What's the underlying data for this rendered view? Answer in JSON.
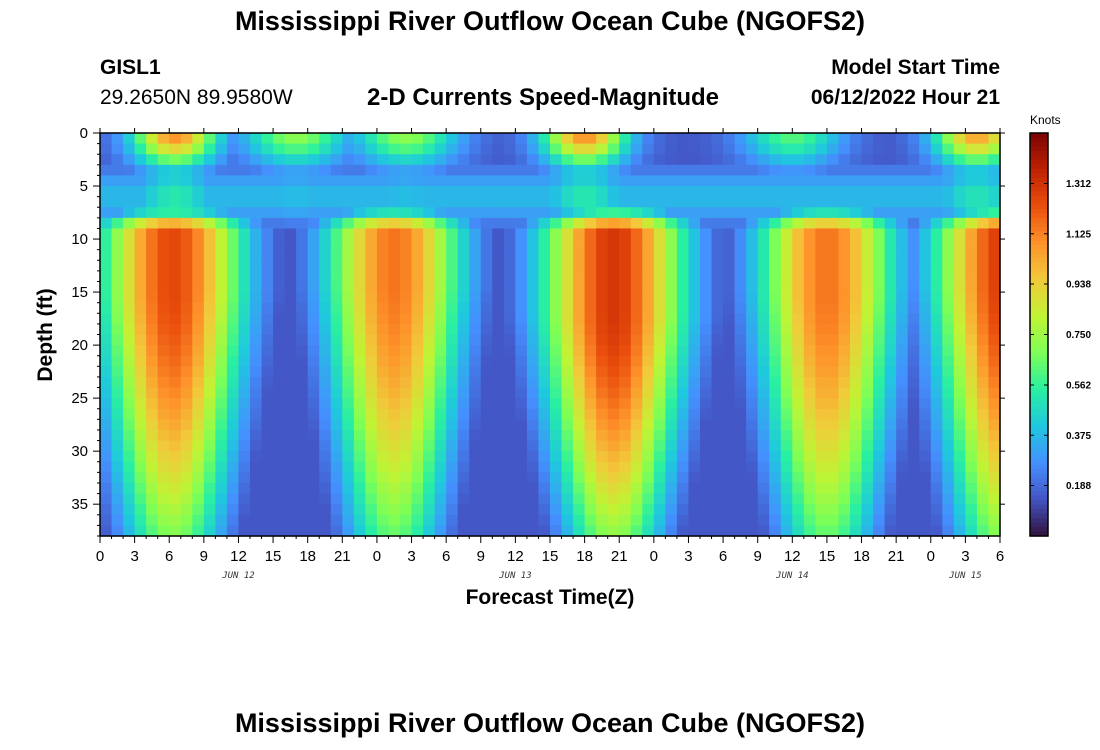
{
  "header": {
    "title": "Mississippi River Outflow Ocean Cube (NGOFS2)",
    "station_name": "GISL1",
    "station_coords": "29.2650N  89.9580W",
    "subtitle": "2-D Currents Speed-Magnitude",
    "model_label": "Model Start Time",
    "model_time": "06/12/2022 Hour 21"
  },
  "footer": {
    "title": "Mississippi River Outflow Ocean Cube (NGOFS2)"
  },
  "chart_data": {
    "type": "heatmap",
    "title": "2-D Currents Speed-Magnitude",
    "xlabel": "Forecast Time(Z)",
    "ylabel": "Depth (ft)",
    "xlim": [
      0,
      78
    ],
    "ylim": [
      38,
      0
    ],
    "x_ticks": [
      0,
      3,
      6,
      9,
      12,
      15,
      18,
      21,
      24,
      27,
      30,
      33,
      36,
      39,
      42,
      45,
      48,
      51,
      54,
      57,
      60,
      63,
      66,
      69,
      72,
      75,
      78
    ],
    "x_tick_labels": [
      "0",
      "3",
      "6",
      "9",
      "12",
      "15",
      "18",
      "21",
      "0",
      "3",
      "6",
      "9",
      "12",
      "15",
      "18",
      "21",
      "0",
      "3",
      "6",
      "9",
      "12",
      "15",
      "18",
      "21",
      "0",
      "3",
      "6"
    ],
    "y_ticks": [
      0,
      5,
      10,
      15,
      20,
      25,
      30,
      35
    ],
    "y_tick_labels": [
      "0",
      "5",
      "10",
      "15",
      "20",
      "25",
      "30",
      "35"
    ],
    "date_labels": [
      {
        "x": 12,
        "text": "JUN 12"
      },
      {
        "x": 36,
        "text": "JUN 13"
      },
      {
        "x": 60,
        "text": "JUN 14"
      },
      {
        "x": 75,
        "text": "JUN 15"
      }
    ],
    "colorbar": {
      "unit": "Knots",
      "min": 0,
      "max": 1.5,
      "tick_values": [
        0.188,
        0.375,
        0.562,
        0.75,
        0.938,
        1.125,
        1.312
      ],
      "tick_labels": [
        "0.188",
        "0.375",
        "0.562",
        "0.750",
        "0.938",
        "1.125",
        "1.312"
      ],
      "colors": [
        "#30123b",
        "#4454c4",
        "#4490fe",
        "#1fc8de",
        "#29efa2",
        "#7dff56",
        "#c1f334",
        "#f1ca3a",
        "#fe922a",
        "#ea4f0d",
        "#be2102",
        "#7a0403"
      ]
    },
    "time_step_hours": 1,
    "depth_step_ft": 1,
    "field": {
      "description": "speed(t,d) = surface_weight(d)*surface_pulse(t) + deep_weight(d)*deep_pulse(t), in knots",
      "surface_peaks_hour": [
        6.5,
        17,
        26.5,
        42,
        60,
        76
      ],
      "surface_peak_knots": [
        1.0,
        0.6,
        0.6,
        1.0,
        0.5,
        0.95
      ],
      "surface_peak_width_hours": [
        2.6,
        3.2,
        3.2,
        2.6,
        3.0,
        2.6
      ],
      "deep_peaks_hour": [
        6.3,
        25.5,
        44.5,
        63.0,
        78.5
      ],
      "deep_peak_knots": [
        1.3,
        1.2,
        1.35,
        1.2,
        1.35
      ],
      "deep_peak_width_hours": [
        4.8,
        4.6,
        4.8,
        4.6,
        4.8
      ],
      "deep_peak_depth_ft": [
        15,
        14,
        17,
        15,
        14
      ],
      "deep_layer_top_ft": 9.5,
      "surface_layer_bottom_ft": 7,
      "slack_floor_knots": 0.12
    }
  }
}
